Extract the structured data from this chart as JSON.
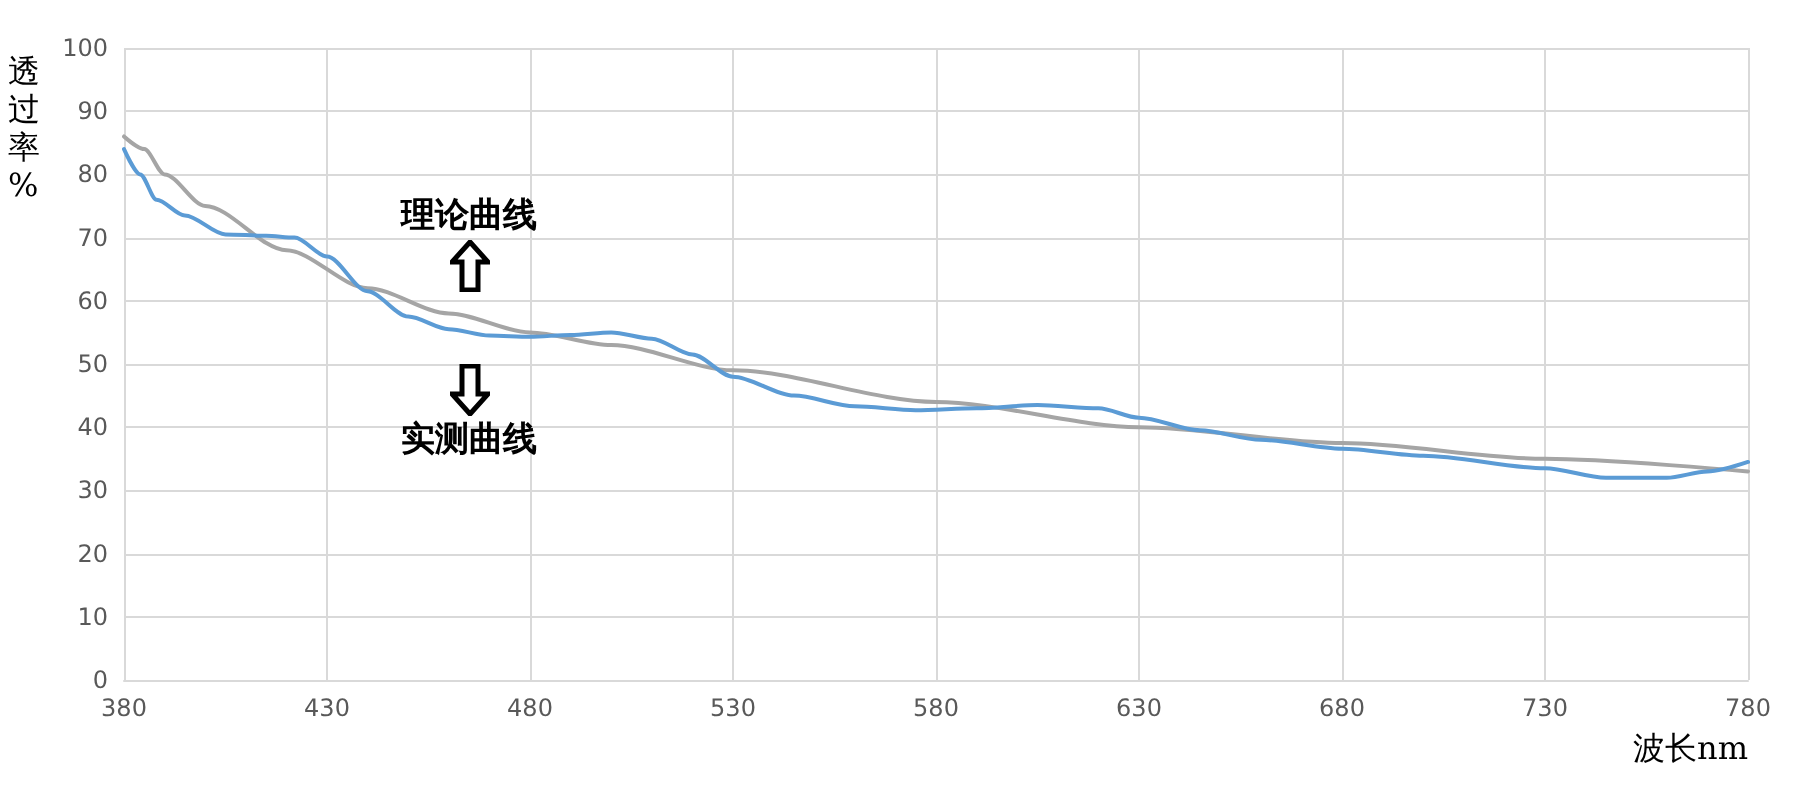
{
  "chart_data": {
    "type": "line",
    "xlabel": "波长nm",
    "ylabel": "透过率%",
    "xlim": [
      380,
      780
    ],
    "xticks": [
      380,
      430,
      480,
      530,
      580,
      630,
      680,
      730,
      780
    ],
    "ylim": [
      0,
      100
    ],
    "yticks": [
      0,
      10,
      20,
      30,
      40,
      50,
      60,
      70,
      80,
      90,
      100
    ],
    "grid": true,
    "marker": "none",
    "line_style": "solid",
    "series": [
      {
        "color": "#a5a5a5",
        "x": [
          380,
          385,
          390,
          400,
          420,
          440,
          460,
          480,
          500,
          530,
          580,
          630,
          680,
          730,
          780
        ],
        "values": [
          86,
          84,
          80,
          75,
          68,
          62,
          58,
          55,
          53,
          49,
          44,
          40,
          37.5,
          35,
          33
        ]
      },
      {
        "color": "#5b9bd5",
        "x": [
          380,
          384,
          388,
          395,
          405,
          415,
          422,
          430,
          440,
          450,
          460,
          470,
          480,
          490,
          500,
          510,
          520,
          530,
          545,
          560,
          575,
          590,
          605,
          620,
          630,
          645,
          660,
          680,
          700,
          730,
          745,
          760,
          770,
          780
        ],
        "values": [
          84,
          80,
          76,
          73.5,
          70.5,
          70.3,
          70,
          67,
          61.5,
          57.5,
          55.5,
          54.5,
          54.3,
          54.6,
          55,
          54,
          51.5,
          48,
          45,
          43.3,
          42.7,
          43,
          43.5,
          43,
          41.5,
          39.5,
          38,
          36.6,
          35.5,
          33.5,
          32,
          32,
          33,
          34.5
        ]
      }
    ],
    "annotations": [
      {
        "text": "理论曲线",
        "x": 465,
        "y": 57
      },
      {
        "text": "实测曲线",
        "x": 465,
        "y": 55
      }
    ]
  }
}
